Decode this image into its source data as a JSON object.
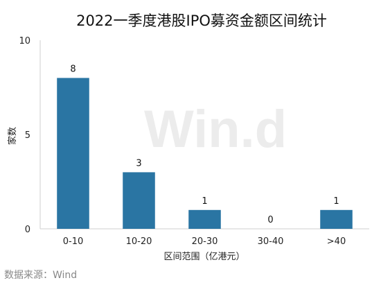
{
  "chart_data": {
    "type": "bar",
    "title": "2022一季度港股IPO募资金额区间统计",
    "xlabel": "区间范围（亿港元）",
    "ylabel": "家数",
    "categories": [
      "0-10",
      "10-20",
      "20-30",
      "30-40",
      ">40"
    ],
    "values": [
      8,
      3,
      1,
      0,
      1
    ],
    "ylim": [
      0,
      10
    ],
    "yticks": [
      0,
      5,
      10
    ],
    "grid": false,
    "bar_color": "#2a75a3"
  },
  "watermark": "Win.d",
  "source_note": "数据来源：Wind"
}
